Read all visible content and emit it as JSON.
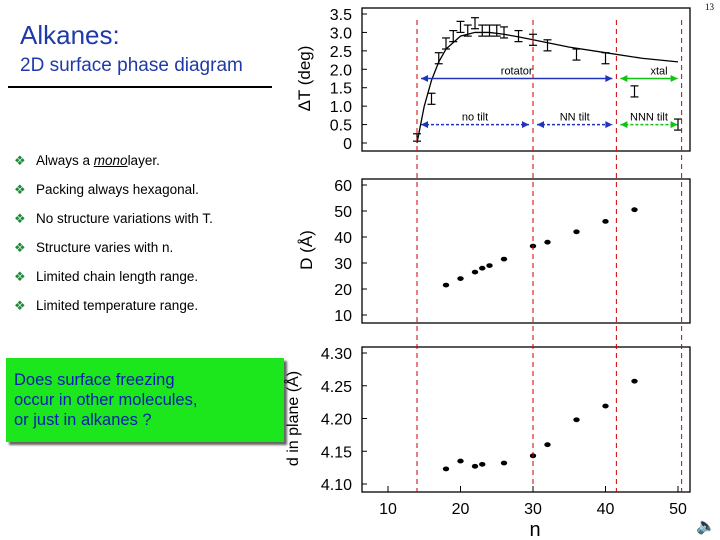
{
  "page_number": "13",
  "title": "Alkanes:",
  "subtitle": "2D surface phase diagram",
  "bullets": [
    {
      "prefix": "Always a ",
      "underlined": "mono",
      "suffix": "layer."
    },
    {
      "text": "Packing always hexagonal."
    },
    {
      "text": "No structure variations with T."
    },
    {
      "text": "Structure varies with n."
    },
    {
      "text": "Limited chain length range."
    },
    {
      "text": "Limited temperature range."
    }
  ],
  "callout": {
    "lines": [
      "Does surface freezing",
      "occur in other molecules,",
      "or just  in alkanes ?"
    ],
    "background": "#1ce61c",
    "text_color": "#0b1fb0"
  },
  "icons": {
    "bullet": "bullet-diamond-icon",
    "speaker": "speaker-icon"
  },
  "colors": {
    "title": "#1f3aa8",
    "bullet": "#1e8a3c",
    "phase_arrow": "#2233bb",
    "xtal_arrow": "#11c411",
    "boundary": "#cc0000"
  },
  "chart_data": [
    {
      "type": "scatter",
      "panel": "top",
      "ylabel": "ΔT (deg)",
      "ylim": [
        0,
        3.5
      ],
      "yticks": [
        "0",
        "0.5",
        "1.0",
        "1.5",
        "2.0",
        "2.5",
        "3.0",
        "3.5"
      ],
      "points": [
        {
          "x": 14,
          "y": 0.15,
          "err": 0.1
        },
        {
          "x": 16,
          "y": 1.2,
          "err": 0.15
        },
        {
          "x": 17,
          "y": 2.3,
          "err": 0.15
        },
        {
          "x": 18,
          "y": 2.7,
          "err": 0.15
        },
        {
          "x": 19,
          "y": 2.9,
          "err": 0.15
        },
        {
          "x": 20,
          "y": 3.15,
          "err": 0.15
        },
        {
          "x": 21,
          "y": 3.05,
          "err": 0.15
        },
        {
          "x": 22,
          "y": 3.25,
          "err": 0.15
        },
        {
          "x": 23,
          "y": 3.05,
          "err": 0.15
        },
        {
          "x": 24,
          "y": 3.05,
          "err": 0.15
        },
        {
          "x": 25,
          "y": 3.05,
          "err": 0.15
        },
        {
          "x": 26,
          "y": 3.0,
          "err": 0.15
        },
        {
          "x": 28,
          "y": 2.9,
          "err": 0.15
        },
        {
          "x": 30,
          "y": 2.8,
          "err": 0.15
        },
        {
          "x": 32,
          "y": 2.65,
          "err": 0.15
        },
        {
          "x": 36,
          "y": 2.4,
          "err": 0.15
        },
        {
          "x": 40,
          "y": 2.3,
          "err": 0.15
        },
        {
          "x": 44,
          "y": 1.4,
          "err": 0.15
        },
        {
          "x": 50,
          "y": 0.5,
          "err": 0.15
        }
      ],
      "fit_curve": {
        "x": [
          14,
          15,
          16,
          17,
          18,
          20,
          22,
          24,
          26,
          28,
          30,
          35,
          40,
          45,
          50
        ],
        "y": [
          0,
          1.0,
          1.7,
          2.2,
          2.55,
          2.9,
          3.0,
          3.0,
          2.95,
          2.88,
          2.8,
          2.6,
          2.45,
          2.3,
          2.2
        ]
      },
      "regions": [
        {
          "label": "rotator",
          "x_from": 14,
          "x_to": 41.5,
          "y": 1.75
        },
        {
          "label": "xtal",
          "x_from": 41.5,
          "x_to": 50.5,
          "y": 1.75
        },
        {
          "label": "no tilt",
          "x_from": 14,
          "x_to": 30,
          "y": 0.5
        },
        {
          "label": "NN tilt",
          "x_from": 30,
          "x_to": 41.5,
          "y": 0.5
        },
        {
          "label": "NNN tilt",
          "x_from": 41.5,
          "x_to": 50.5,
          "y": 0.5
        }
      ],
      "boundaries_x": [
        14,
        30,
        41.5,
        50.5
      ]
    },
    {
      "type": "scatter",
      "panel": "middle",
      "ylabel": "D (Å)",
      "ylim": [
        10,
        60
      ],
      "yticks": [
        "10",
        "20",
        "30",
        "40",
        "50",
        "60"
      ],
      "points": [
        {
          "x": 18,
          "y": 21.5
        },
        {
          "x": 20,
          "y": 24
        },
        {
          "x": 22,
          "y": 26.5
        },
        {
          "x": 23,
          "y": 28
        },
        {
          "x": 24,
          "y": 29
        },
        {
          "x": 26,
          "y": 31.5
        },
        {
          "x": 30,
          "y": 36.5
        },
        {
          "x": 32,
          "y": 38
        },
        {
          "x": 36,
          "y": 42
        },
        {
          "x": 40,
          "y": 46
        },
        {
          "x": 44,
          "y": 50.5
        }
      ]
    },
    {
      "type": "scatter",
      "panel": "bottom",
      "ylabel": "d in plane (Å)",
      "ylim": [
        4.1,
        4.3
      ],
      "yticks": [
        "4.10",
        "4.15",
        "4.20",
        "4.25",
        "4.30"
      ],
      "xlabel": "n",
      "xlim": [
        10,
        50
      ],
      "xticks": [
        "10",
        "20",
        "30",
        "40",
        "50"
      ],
      "points": [
        {
          "x": 18,
          "y": 4.123
        },
        {
          "x": 20,
          "y": 4.135
        },
        {
          "x": 22,
          "y": 4.127
        },
        {
          "x": 23,
          "y": 4.13
        },
        {
          "x": 26,
          "y": 4.132
        },
        {
          "x": 30,
          "y": 4.143
        },
        {
          "x": 32,
          "y": 4.16
        },
        {
          "x": 36,
          "y": 4.198
        },
        {
          "x": 40,
          "y": 4.219
        },
        {
          "x": 44,
          "y": 4.257
        }
      ]
    }
  ]
}
